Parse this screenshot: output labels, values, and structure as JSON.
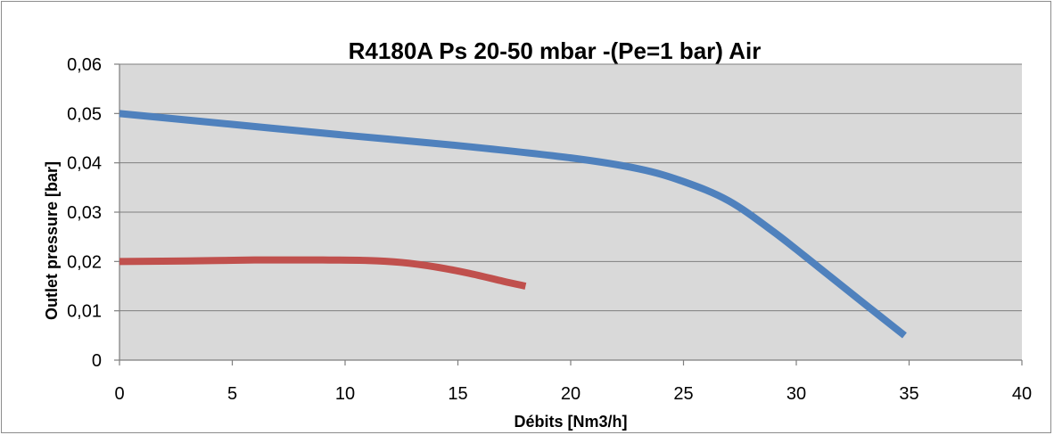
{
  "chart_data": {
    "type": "line",
    "title": "R4180A Ps 20-50 mbar -(Pe=1 bar) Air",
    "xlabel": "Débits [Nm3/h]",
    "ylabel": "Outlet pressure [bar]",
    "xlim": [
      0,
      40
    ],
    "ylim": [
      0,
      0.06
    ],
    "x_ticks": [
      0,
      5,
      10,
      15,
      20,
      25,
      30,
      35,
      40
    ],
    "x_tick_labels": [
      "0",
      "5",
      "10",
      "15",
      "20",
      "25",
      "30",
      "35",
      "40"
    ],
    "y_ticks": [
      0,
      0.01,
      0.02,
      0.03,
      0.04,
      0.05,
      0.06
    ],
    "y_tick_labels": [
      "0",
      "0,01",
      "0,02",
      "0,03",
      "0,04",
      "0,05",
      "0,06"
    ],
    "grid": "horizontal",
    "legend": "none",
    "plot_background": "#d9d9d9",
    "series": [
      {
        "color": "#4f81bd",
        "x": [
          0,
          5,
          10,
          15,
          20,
          23,
          25,
          27,
          29,
          31,
          33,
          34.8
        ],
        "y": [
          0.05,
          0.0478,
          0.0456,
          0.0435,
          0.041,
          0.0388,
          0.0362,
          0.0323,
          0.026,
          0.0188,
          0.0115,
          0.005
        ]
      },
      {
        "color": "#c0504d",
        "x": [
          0,
          3,
          6,
          9,
          11,
          12.5,
          14,
          15.5,
          17,
          18
        ],
        "y": [
          0.02,
          0.0201,
          0.0203,
          0.0203,
          0.0202,
          0.0198,
          0.0189,
          0.0176,
          0.016,
          0.015
        ]
      }
    ]
  }
}
